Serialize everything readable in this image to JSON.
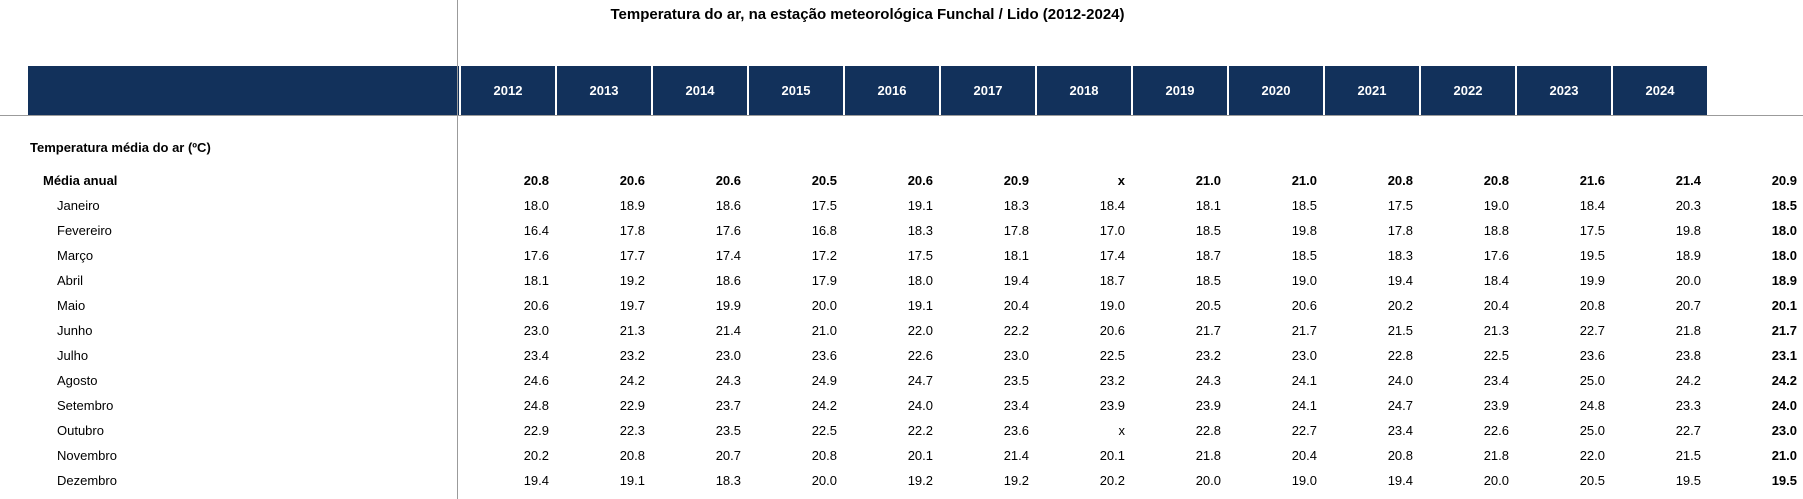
{
  "title": "Temperatura do ar, na estação meteorológica Funchal / Lido (2012-2024)",
  "colors": {
    "header_bg": "#12315B",
    "header_text": "#FFFFFF",
    "rule": "#9B9B9B",
    "text": "#000000"
  },
  "missing_marker": "x",
  "header": {
    "years": [
      "2012",
      "2013",
      "2014",
      "2015",
      "2016",
      "2017",
      "2018",
      "2019",
      "2020",
      "2021",
      "2022",
      "2023",
      "2024"
    ]
  },
  "table": {
    "section_label": "Temperatura média do ar (ºC)",
    "rows": [
      {
        "label": "Média anual",
        "level": 1,
        "bold": true,
        "values": [
          "20.8",
          "20.6",
          "20.6",
          "20.5",
          "20.6",
          "20.9",
          "x",
          "21.0",
          "21.0",
          "20.8",
          "20.8",
          "21.6",
          "21.4",
          "20.9"
        ]
      },
      {
        "label": "Janeiro",
        "level": 2,
        "bold": false,
        "values": [
          "18.0",
          "18.9",
          "18.6",
          "17.5",
          "19.1",
          "18.3",
          "18.4",
          "18.1",
          "18.5",
          "17.5",
          "19.0",
          "18.4",
          "20.3",
          "18.5"
        ]
      },
      {
        "label": "Fevereiro",
        "level": 2,
        "bold": false,
        "values": [
          "16.4",
          "17.8",
          "17.6",
          "16.8",
          "18.3",
          "17.8",
          "17.0",
          "18.5",
          "19.8",
          "17.8",
          "18.8",
          "17.5",
          "19.8",
          "18.0"
        ]
      },
      {
        "label": "Março",
        "level": 2,
        "bold": false,
        "values": [
          "17.6",
          "17.7",
          "17.4",
          "17.2",
          "17.5",
          "18.1",
          "17.4",
          "18.7",
          "18.5",
          "18.3",
          "17.6",
          "19.5",
          "18.9",
          "18.0"
        ]
      },
      {
        "label": "Abril",
        "level": 2,
        "bold": false,
        "values": [
          "18.1",
          "19.2",
          "18.6",
          "17.9",
          "18.0",
          "19.4",
          "18.7",
          "18.5",
          "19.0",
          "19.4",
          "18.4",
          "19.9",
          "20.0",
          "18.9"
        ]
      },
      {
        "label": "Maio",
        "level": 2,
        "bold": false,
        "values": [
          "20.6",
          "19.7",
          "19.9",
          "20.0",
          "19.1",
          "20.4",
          "19.0",
          "20.5",
          "20.6",
          "20.2",
          "20.4",
          "20.8",
          "20.7",
          "20.1"
        ]
      },
      {
        "label": "Junho",
        "level": 2,
        "bold": false,
        "values": [
          "23.0",
          "21.3",
          "21.4",
          "21.0",
          "22.0",
          "22.2",
          "20.6",
          "21.7",
          "21.7",
          "21.5",
          "21.3",
          "22.7",
          "21.8",
          "21.7"
        ]
      },
      {
        "label": "Julho",
        "level": 2,
        "bold": false,
        "values": [
          "23.4",
          "23.2",
          "23.0",
          "23.6",
          "22.6",
          "23.0",
          "22.5",
          "23.2",
          "23.0",
          "22.8",
          "22.5",
          "23.6",
          "23.8",
          "23.1"
        ]
      },
      {
        "label": "Agosto",
        "level": 2,
        "bold": false,
        "values": [
          "24.6",
          "24.2",
          "24.3",
          "24.9",
          "24.7",
          "23.5",
          "23.2",
          "24.3",
          "24.1",
          "24.0",
          "23.4",
          "25.0",
          "24.2",
          "24.2"
        ]
      },
      {
        "label": "Setembro",
        "level": 2,
        "bold": false,
        "values": [
          "24.8",
          "22.9",
          "23.7",
          "24.2",
          "24.0",
          "23.4",
          "23.9",
          "23.9",
          "24.1",
          "24.7",
          "23.9",
          "24.8",
          "23.3",
          "24.0"
        ]
      },
      {
        "label": "Outubro",
        "level": 2,
        "bold": false,
        "values": [
          "22.9",
          "22.3",
          "23.5",
          "22.5",
          "22.2",
          "23.6",
          "x",
          "22.8",
          "22.7",
          "23.4",
          "22.6",
          "25.0",
          "22.7",
          "23.0"
        ]
      },
      {
        "label": "Novembro",
        "level": 2,
        "bold": false,
        "values": [
          "20.2",
          "20.8",
          "20.7",
          "20.8",
          "20.1",
          "21.4",
          "20.1",
          "21.8",
          "20.4",
          "20.8",
          "21.8",
          "22.0",
          "21.5",
          "21.0"
        ]
      },
      {
        "label": "Dezembro",
        "level": 2,
        "bold": false,
        "values": [
          "19.4",
          "19.1",
          "18.3",
          "20.0",
          "19.2",
          "19.2",
          "20.2",
          "20.0",
          "19.0",
          "19.4",
          "20.0",
          "20.5",
          "19.5",
          "19.5"
        ]
      }
    ]
  },
  "chart_data": {
    "type": "table",
    "title": "Temperatura do ar, na estação meteorológica Funchal / Lido (2012-2024)",
    "columns": [
      "2012",
      "2013",
      "2014",
      "2015",
      "2016",
      "2017",
      "2018",
      "2019",
      "2020",
      "2021",
      "2022",
      "2023",
      "2024",
      ""
    ],
    "section": "Temperatura média do ar (ºC)",
    "rows": [
      {
        "label": "Média anual",
        "values": [
          "20.8",
          "20.6",
          "20.6",
          "20.5",
          "20.6",
          "20.9",
          "x",
          "21.0",
          "21.0",
          "20.8",
          "20.8",
          "21.6",
          "21.4",
          "20.9"
        ]
      },
      {
        "label": "Janeiro",
        "values": [
          "18.0",
          "18.9",
          "18.6",
          "17.5",
          "19.1",
          "18.3",
          "18.4",
          "18.1",
          "18.5",
          "17.5",
          "19.0",
          "18.4",
          "20.3",
          "18.5"
        ]
      },
      {
        "label": "Fevereiro",
        "values": [
          "16.4",
          "17.8",
          "17.6",
          "16.8",
          "18.3",
          "17.8",
          "17.0",
          "18.5",
          "19.8",
          "17.8",
          "18.8",
          "17.5",
          "19.8",
          "18.0"
        ]
      },
      {
        "label": "Março",
        "values": [
          "17.6",
          "17.7",
          "17.4",
          "17.2",
          "17.5",
          "18.1",
          "17.4",
          "18.7",
          "18.5",
          "18.3",
          "17.6",
          "19.5",
          "18.9",
          "18.0"
        ]
      },
      {
        "label": "Abril",
        "values": [
          "18.1",
          "19.2",
          "18.6",
          "17.9",
          "18.0",
          "19.4",
          "18.7",
          "18.5",
          "19.0",
          "19.4",
          "18.4",
          "19.9",
          "20.0",
          "18.9"
        ]
      },
      {
        "label": "Maio",
        "values": [
          "20.6",
          "19.7",
          "19.9",
          "20.0",
          "19.1",
          "20.4",
          "19.0",
          "20.5",
          "20.6",
          "20.2",
          "20.4",
          "20.8",
          "20.7",
          "20.1"
        ]
      },
      {
        "label": "Junho",
        "values": [
          "23.0",
          "21.3",
          "21.4",
          "21.0",
          "22.0",
          "22.2",
          "20.6",
          "21.7",
          "21.7",
          "21.5",
          "21.3",
          "22.7",
          "21.8",
          "21.7"
        ]
      },
      {
        "label": "Julho",
        "values": [
          "23.4",
          "23.2",
          "23.0",
          "23.6",
          "22.6",
          "23.0",
          "22.5",
          "23.2",
          "23.0",
          "22.8",
          "22.5",
          "23.6",
          "23.8",
          "23.1"
        ]
      },
      {
        "label": "Agosto",
        "values": [
          "24.6",
          "24.2",
          "24.3",
          "24.9",
          "24.7",
          "23.5",
          "23.2",
          "24.3",
          "24.1",
          "24.0",
          "23.4",
          "25.0",
          "24.2",
          "24.2"
        ]
      },
      {
        "label": "Setembro",
        "values": [
          "24.8",
          "22.9",
          "23.7",
          "24.2",
          "24.0",
          "23.4",
          "23.9",
          "23.9",
          "24.1",
          "24.7",
          "23.9",
          "24.8",
          "23.3",
          "24.0"
        ]
      },
      {
        "label": "Outubro",
        "values": [
          "22.9",
          "22.3",
          "23.5",
          "22.5",
          "22.2",
          "23.6",
          "x",
          "22.8",
          "22.7",
          "23.4",
          "22.6",
          "25.0",
          "22.7",
          "23.0"
        ]
      },
      {
        "label": "Novembro",
        "values": [
          "20.2",
          "20.8",
          "20.7",
          "20.8",
          "20.1",
          "21.4",
          "20.1",
          "21.8",
          "20.4",
          "20.8",
          "21.8",
          "22.0",
          "21.5",
          "21.0"
        ]
      },
      {
        "label": "Dezembro",
        "values": [
          "19.4",
          "19.1",
          "18.3",
          "20.0",
          "19.2",
          "19.2",
          "20.2",
          "20.0",
          "19.0",
          "19.4",
          "20.0",
          "20.5",
          "19.5",
          "19.5"
        ]
      }
    ]
  }
}
